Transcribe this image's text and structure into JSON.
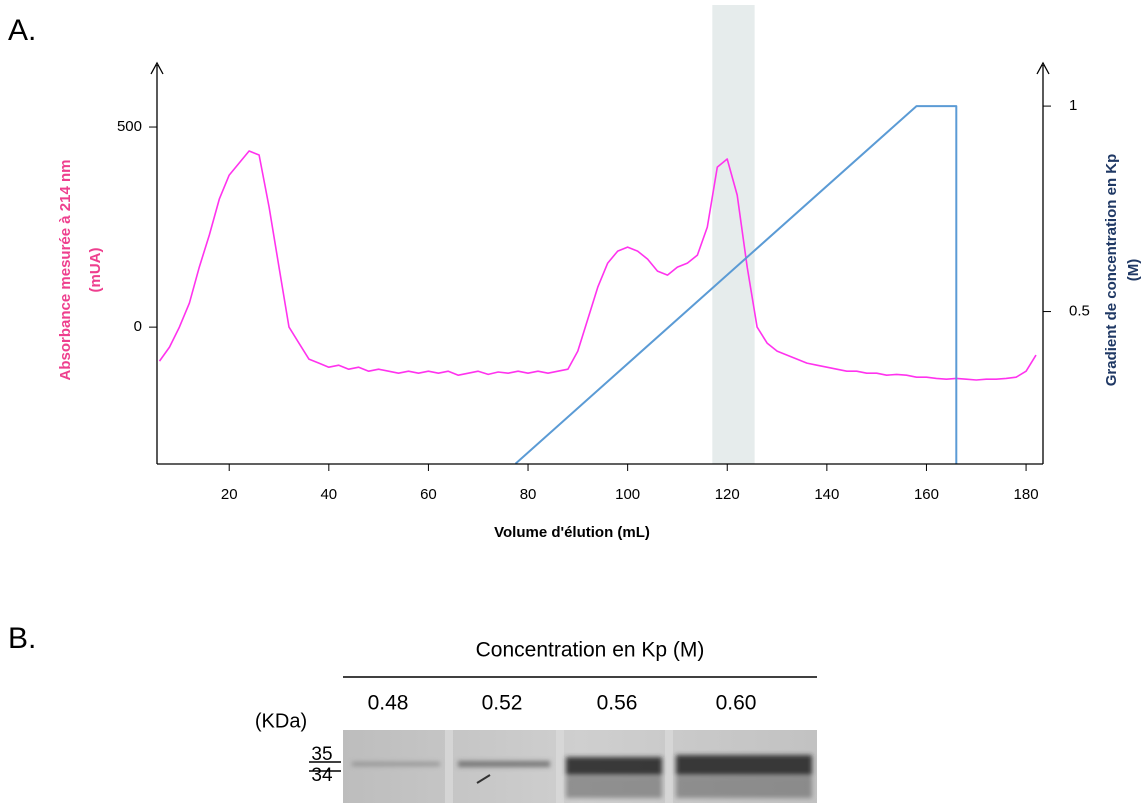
{
  "panel_a_label": "A.",
  "chart_data": {
    "type": "line",
    "x_label": "Volume d'élution (mL)",
    "y_label": [
      "Absorbance mesurée à 214 nm",
      "(mUA)"
    ],
    "y2_label": [
      "Gradient de concentration  en Kp",
      "(M)"
    ],
    "xlim": [
      5.5,
      183.4
    ],
    "xticks": [
      20,
      40,
      60,
      80,
      100,
      120,
      140,
      160,
      180
    ],
    "ylim": [
      -342,
      655
    ],
    "yticks": [
      0,
      500
    ],
    "y2lim": [
      0.129,
      1.1
    ],
    "y2ticks": [
      0.5,
      1
    ],
    "highlight": [
      117,
      125.5
    ],
    "highlight_color": "#e6ecec",
    "series": [
      {
        "color": "#ff33ee",
        "x": [
          6,
          8,
          10,
          12,
          14,
          16,
          18,
          20,
          22,
          24,
          26,
          28,
          30,
          32,
          34,
          36,
          38,
          40,
          42,
          44,
          46,
          48,
          50,
          52,
          54,
          56,
          58,
          60,
          62,
          64,
          66,
          68,
          70,
          72,
          74,
          76,
          78,
          80,
          82,
          84,
          86,
          88,
          90,
          92,
          94,
          96,
          98,
          100,
          102,
          104,
          106,
          108,
          110,
          112,
          114,
          116,
          118,
          120,
          122,
          124,
          126,
          128,
          130,
          132,
          134,
          136,
          138,
          140,
          142,
          144,
          146,
          148,
          150,
          152,
          154,
          156,
          158,
          160,
          162,
          164,
          166,
          168,
          170,
          172,
          174,
          176,
          178,
          180,
          182
        ],
        "values": [
          -85,
          -50,
          0,
          60,
          150,
          230,
          320,
          380,
          410,
          440,
          430,
          300,
          150,
          0,
          -40,
          -80,
          -90,
          -100,
          -95,
          -105,
          -100,
          -110,
          -105,
          -110,
          -115,
          -110,
          -115,
          -110,
          -115,
          -110,
          -120,
          -115,
          -110,
          -118,
          -112,
          -115,
          -110,
          -115,
          -110,
          -115,
          -110,
          -105,
          -60,
          20,
          100,
          160,
          190,
          200,
          190,
          170,
          140,
          130,
          150,
          160,
          180,
          250,
          400,
          420,
          330,
          150,
          0,
          -40,
          -60,
          -70,
          -80,
          -90,
          -95,
          -100,
          -105,
          -110,
          -110,
          -115,
          -115,
          -120,
          -118,
          -120,
          -125,
          -125,
          -128,
          -130,
          -128,
          -130,
          -132,
          -130,
          -130,
          -128,
          -125,
          -110,
          -70
        ]
      },
      {
        "color": "#5b9bd5",
        "axis": "y2",
        "x": [
          77.5,
          158,
          166,
          166
        ],
        "values": [
          0.13,
          1,
          1,
          0.13
        ]
      }
    ]
  },
  "panel_b": {
    "label": "B.",
    "title": "Concentration en Kp (M)",
    "lanes": [
      "0.48",
      "0.52",
      "0.56",
      "0.60"
    ],
    "unit_label": "(KDa)",
    "markers": [
      35,
      34
    ]
  }
}
